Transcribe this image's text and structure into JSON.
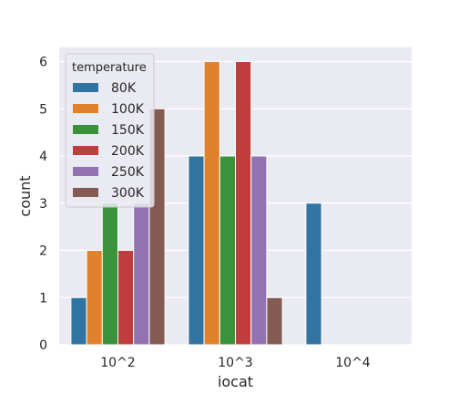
{
  "chart_data": {
    "type": "bar",
    "categories": [
      "10^2",
      "10^3",
      "10^4"
    ],
    "xlabel": "iocat",
    "ylabel": "count",
    "ylim": [
      0,
      6.3
    ],
    "yticks": [
      0,
      1,
      2,
      3,
      4,
      5,
      6
    ],
    "grid": true,
    "legend": {
      "title": "temperature",
      "placement": "top-left"
    },
    "series": [
      {
        "name": "80K",
        "color": "#3274a1",
        "values": [
          1,
          4,
          3
        ]
      },
      {
        "name": "100K",
        "color": "#e1812c",
        "values": [
          2,
          6,
          0
        ]
      },
      {
        "name": "150K",
        "color": "#3a923a",
        "values": [
          3,
          4,
          0
        ]
      },
      {
        "name": "200K",
        "color": "#c03d3e",
        "values": [
          2,
          6,
          0
        ]
      },
      {
        "name": "250K",
        "color": "#9372b2",
        "values": [
          3,
          4,
          0
        ]
      },
      {
        "name": "300K",
        "color": "#845b53",
        "values": [
          5,
          1,
          0
        ]
      }
    ],
    "background": "#eaeaf2"
  }
}
